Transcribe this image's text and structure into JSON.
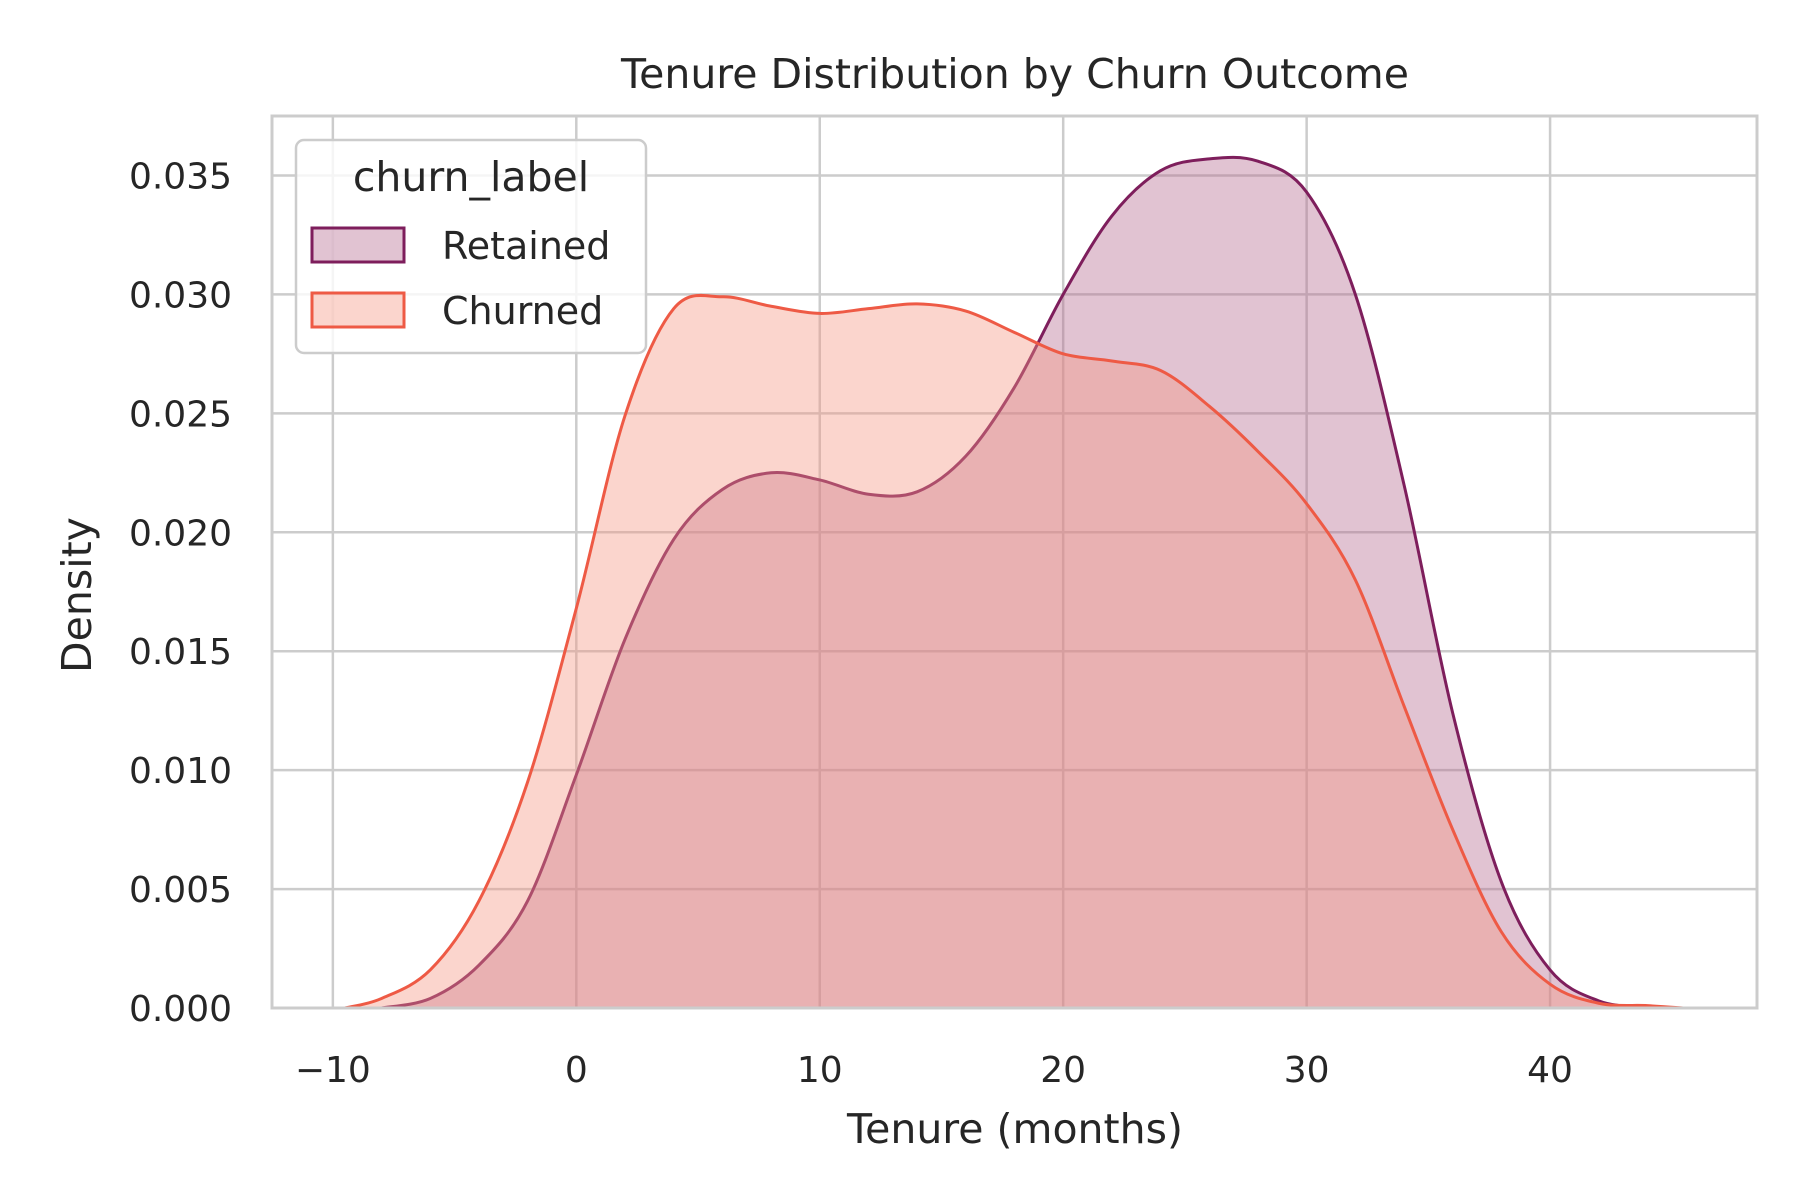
{
  "chart_data": {
    "type": "area",
    "title": "Tenure Distribution by Churn Outcome",
    "xlabel": "Tenure (months)",
    "ylabel": "Density",
    "xlim": [
      -12.5,
      48.5
    ],
    "ylim": [
      0,
      0.0375
    ],
    "xticks": [
      -10,
      0,
      10,
      20,
      30,
      40
    ],
    "xtick_labels": [
      "−10",
      "0",
      "10",
      "20",
      "30",
      "40"
    ],
    "yticks": [
      0,
      0.005,
      0.01,
      0.015,
      0.02,
      0.025,
      0.03,
      0.035
    ],
    "ytick_labels": [
      "0.000",
      "0.005",
      "0.010",
      "0.015",
      "0.020",
      "0.025",
      "0.030",
      "0.035"
    ],
    "grid": true,
    "legend": {
      "title": "churn_label",
      "position": "upper-left"
    },
    "series": [
      {
        "name": "Retained",
        "line_color": "#7e1e5c",
        "fill_color": "#b3688f",
        "fill_opacity": 0.4,
        "x": [
          -8,
          -6,
          -4,
          -2,
          0,
          2,
          4,
          6,
          8,
          10,
          12,
          14,
          16,
          18,
          20,
          22,
          24,
          26,
          28,
          30,
          32,
          34,
          36,
          38,
          40,
          42,
          44
        ],
        "y": [
          0.0,
          0.0004,
          0.0018,
          0.0045,
          0.0098,
          0.0155,
          0.0197,
          0.0218,
          0.0225,
          0.0222,
          0.0216,
          0.0217,
          0.0232,
          0.0261,
          0.03,
          0.0333,
          0.0352,
          0.0357,
          0.0356,
          0.0343,
          0.03,
          0.022,
          0.0124,
          0.0053,
          0.0016,
          0.0003,
          0.0
        ]
      },
      {
        "name": "Churned",
        "line_color": "#ee5a45",
        "fill_color": "#f59583",
        "fill_opacity": 0.4,
        "x": [
          -9.5,
          -8,
          -6,
          -4,
          -2,
          0,
          2,
          4,
          6,
          8,
          10,
          12,
          14,
          16,
          18,
          20,
          22,
          24,
          26,
          28,
          30,
          32,
          34,
          36,
          38,
          40,
          42,
          44,
          45.5
        ],
        "y": [
          0.0,
          0.0004,
          0.0016,
          0.0045,
          0.0095,
          0.0168,
          0.0249,
          0.0294,
          0.0299,
          0.0295,
          0.0292,
          0.0294,
          0.0296,
          0.0293,
          0.0284,
          0.0275,
          0.0272,
          0.0268,
          0.0253,
          0.0234,
          0.0212,
          0.018,
          0.0127,
          0.0075,
          0.0032,
          0.001,
          0.0002,
          0.0001,
          0.0
        ]
      }
    ]
  }
}
